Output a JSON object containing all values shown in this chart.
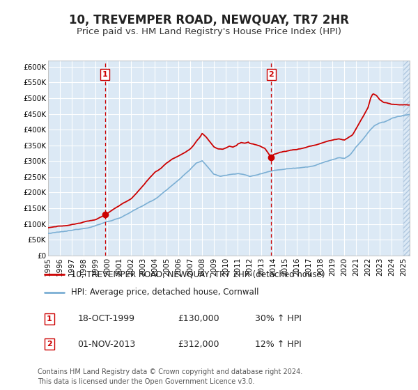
{
  "title": "10, TREVEMPER ROAD, NEWQUAY, TR7 2HR",
  "subtitle": "Price paid vs. HM Land Registry's House Price Index (HPI)",
  "ylim": [
    0,
    620000
  ],
  "xlim_start": 1995.0,
  "xlim_end": 2025.5,
  "yticks": [
    0,
    50000,
    100000,
    150000,
    200000,
    250000,
    300000,
    350000,
    400000,
    450000,
    500000,
    550000,
    600000
  ],
  "ytick_labels": [
    "£0",
    "£50K",
    "£100K",
    "£150K",
    "£200K",
    "£250K",
    "£300K",
    "£350K",
    "£400K",
    "£450K",
    "£500K",
    "£550K",
    "£600K"
  ],
  "xticks": [
    1995,
    1996,
    1997,
    1998,
    1999,
    2000,
    2001,
    2002,
    2003,
    2004,
    2005,
    2006,
    2007,
    2008,
    2009,
    2010,
    2011,
    2012,
    2013,
    2014,
    2015,
    2016,
    2017,
    2018,
    2019,
    2020,
    2021,
    2022,
    2023,
    2024,
    2025
  ],
  "hpi_color": "#7bafd4",
  "price_color": "#cc0000",
  "marker_color": "#cc0000",
  "vline_color": "#cc0000",
  "background_color": "#ffffff",
  "plot_bg_color": "#dce9f5",
  "grid_color": "#c8d8e8",
  "legend_label_red": "10, TREVEMPER ROAD, NEWQUAY, TR7 2HR (detached house)",
  "legend_label_blue": "HPI: Average price, detached house, Cornwall",
  "sale1_date": "18-OCT-1999",
  "sale1_price": "£130,000",
  "sale1_hpi": "30% ↑ HPI",
  "sale1_x": 1999.8,
  "sale1_y": 130000,
  "sale2_date": "01-NOV-2013",
  "sale2_price": "£312,000",
  "sale2_hpi": "12% ↑ HPI",
  "sale2_x": 2013.83,
  "sale2_y": 312000,
  "vline1_x": 1999.8,
  "vline2_x": 2013.83,
  "footnote1": "Contains HM Land Registry data © Crown copyright and database right 2024.",
  "footnote2": "This data is licensed under the Open Government Licence v3.0.",
  "title_fontsize": 12,
  "subtitle_fontsize": 9.5,
  "tick_fontsize": 7.5,
  "legend_fontsize": 8.5,
  "table_fontsize": 9,
  "footnote_fontsize": 7
}
